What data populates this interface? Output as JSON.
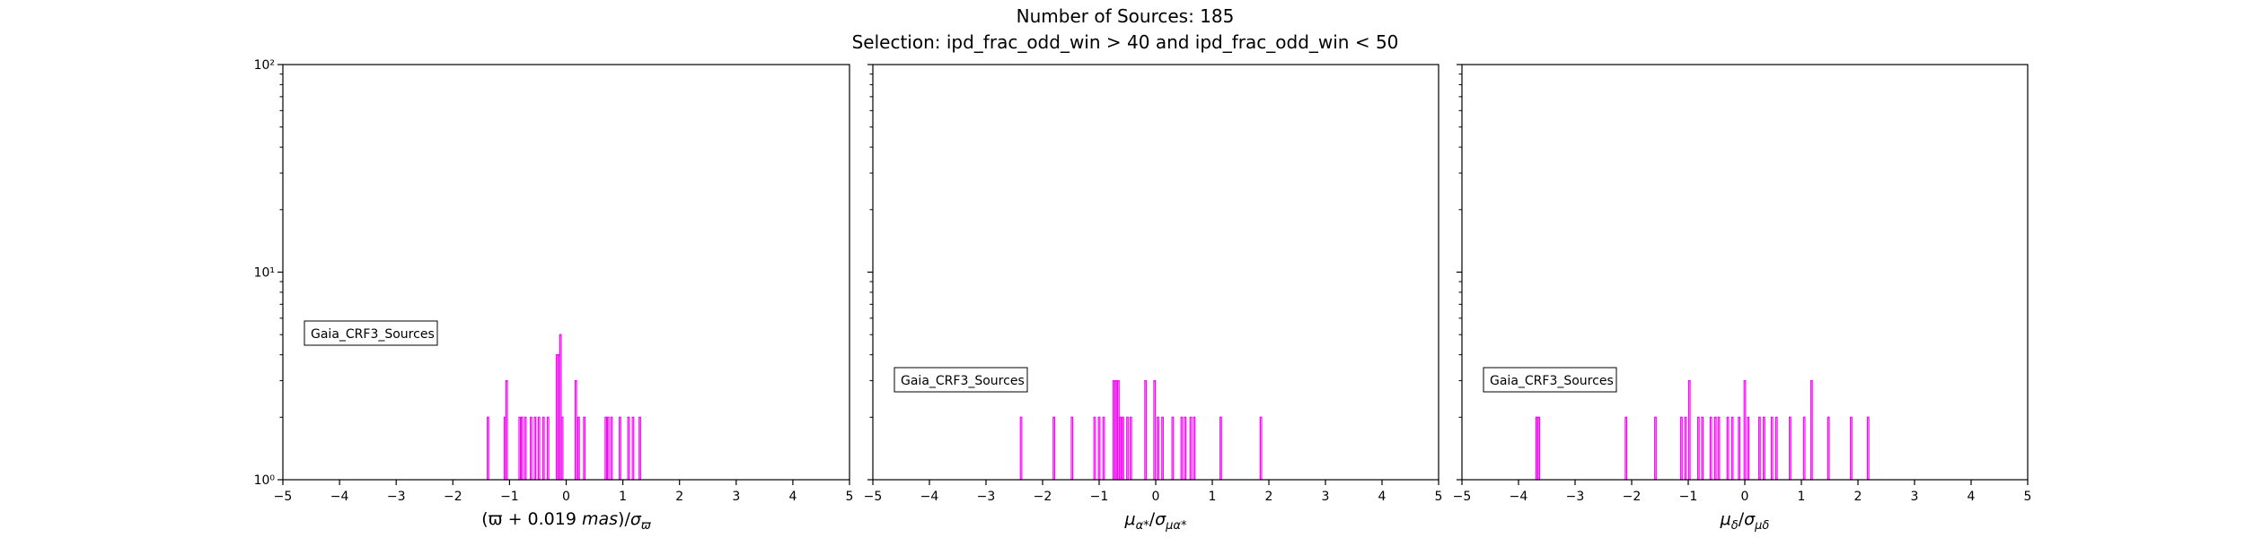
{
  "title": "Number of Sources: 185",
  "subtitle": "Selection: ipd_frac_odd_win > 40 and ipd_frac_odd_win < 50",
  "colors": {
    "histogram": "#ff00ff",
    "axes": "#000000"
  },
  "chart_data": [
    {
      "type": "histogram",
      "legend": "Gaia_CRF3_Sources",
      "legend_position": "middle-left",
      "xlabel": "(ϖ + 0.019 mas)/σϖ",
      "xlim": [
        -5,
        5
      ],
      "ylim": [
        1,
        100
      ],
      "yscale": "log",
      "xticks": [
        "−5",
        "−4",
        "−3",
        "−2",
        "−1",
        "0",
        "1",
        "2",
        "3",
        "4",
        "5"
      ],
      "yticks": [
        "10⁰",
        "10¹",
        "10²"
      ],
      "bins": [
        {
          "x": -1.38,
          "count": 2
        },
        {
          "x": -1.08,
          "count": 2
        },
        {
          "x": -1.05,
          "count": 3
        },
        {
          "x": -0.82,
          "count": 2
        },
        {
          "x": -0.78,
          "count": 2
        },
        {
          "x": -0.72,
          "count": 2
        },
        {
          "x": -0.62,
          "count": 2
        },
        {
          "x": -0.55,
          "count": 2
        },
        {
          "x": -0.48,
          "count": 2
        },
        {
          "x": -0.4,
          "count": 2
        },
        {
          "x": -0.32,
          "count": 2
        },
        {
          "x": -0.16,
          "count": 4
        },
        {
          "x": -0.13,
          "count": 4
        },
        {
          "x": -0.1,
          "count": 5
        },
        {
          "x": -0.07,
          "count": 2
        },
        {
          "x": 0.17,
          "count": 3
        },
        {
          "x": 0.22,
          "count": 2
        },
        {
          "x": 0.32,
          "count": 2
        },
        {
          "x": 0.7,
          "count": 2
        },
        {
          "x": 0.74,
          "count": 2
        },
        {
          "x": 0.8,
          "count": 2
        },
        {
          "x": 0.95,
          "count": 2
        },
        {
          "x": 1.1,
          "count": 2
        },
        {
          "x": 1.18,
          "count": 2
        },
        {
          "x": 1.3,
          "count": 2
        }
      ]
    },
    {
      "type": "histogram",
      "legend": "Gaia_CRF3_Sources",
      "legend_position": "middle-left",
      "xlabel": "μα*/σμα*",
      "xlim": [
        -5,
        5
      ],
      "ylim": [
        1,
        100
      ],
      "yscale": "log",
      "xticks": [
        "−5",
        "−4",
        "−3",
        "−2",
        "−1",
        "0",
        "1",
        "2",
        "3",
        "4",
        "5"
      ],
      "yticks": [],
      "bins": [
        {
          "x": -2.38,
          "count": 2
        },
        {
          "x": -1.8,
          "count": 2
        },
        {
          "x": -1.48,
          "count": 2
        },
        {
          "x": -1.08,
          "count": 2
        },
        {
          "x": -1.0,
          "count": 2
        },
        {
          "x": -0.92,
          "count": 2
        },
        {
          "x": -0.74,
          "count": 3
        },
        {
          "x": -0.7,
          "count": 3
        },
        {
          "x": -0.66,
          "count": 3
        },
        {
          "x": -0.62,
          "count": 2
        },
        {
          "x": -0.58,
          "count": 2
        },
        {
          "x": -0.5,
          "count": 2
        },
        {
          "x": -0.44,
          "count": 2
        },
        {
          "x": -0.18,
          "count": 3
        },
        {
          "x": -0.02,
          "count": 3
        },
        {
          "x": 0.04,
          "count": 2
        },
        {
          "x": 0.12,
          "count": 2
        },
        {
          "x": 0.3,
          "count": 2
        },
        {
          "x": 0.46,
          "count": 2
        },
        {
          "x": 0.52,
          "count": 2
        },
        {
          "x": 0.62,
          "count": 2
        },
        {
          "x": 0.68,
          "count": 2
        },
        {
          "x": 1.15,
          "count": 2
        },
        {
          "x": 1.86,
          "count": 2
        }
      ]
    },
    {
      "type": "histogram",
      "legend": "Gaia_CRF3_Sources",
      "legend_position": "middle-left",
      "xlabel": "μδ/σμδ",
      "xlim": [
        -5,
        5
      ],
      "ylim": [
        1,
        100
      ],
      "yscale": "log",
      "xticks": [
        "−5",
        "−4",
        "−3",
        "−2",
        "−1",
        "0",
        "1",
        "2",
        "3",
        "4",
        "5"
      ],
      "yticks": [],
      "bins": [
        {
          "x": -3.68,
          "count": 2
        },
        {
          "x": -3.64,
          "count": 2
        },
        {
          "x": -2.1,
          "count": 2
        },
        {
          "x": -1.58,
          "count": 2
        },
        {
          "x": -1.12,
          "count": 2
        },
        {
          "x": -1.05,
          "count": 2
        },
        {
          "x": -0.98,
          "count": 3
        },
        {
          "x": -0.82,
          "count": 2
        },
        {
          "x": -0.75,
          "count": 2
        },
        {
          "x": -0.6,
          "count": 2
        },
        {
          "x": -0.52,
          "count": 2
        },
        {
          "x": -0.46,
          "count": 2
        },
        {
          "x": -0.3,
          "count": 2
        },
        {
          "x": -0.22,
          "count": 2
        },
        {
          "x": -0.1,
          "count": 2
        },
        {
          "x": 0.0,
          "count": 3
        },
        {
          "x": 0.06,
          "count": 2
        },
        {
          "x": 0.26,
          "count": 2
        },
        {
          "x": 0.34,
          "count": 2
        },
        {
          "x": 0.48,
          "count": 2
        },
        {
          "x": 0.56,
          "count": 2
        },
        {
          "x": 0.8,
          "count": 2
        },
        {
          "x": 1.05,
          "count": 2
        },
        {
          "x": 1.18,
          "count": 3
        },
        {
          "x": 1.48,
          "count": 2
        },
        {
          "x": 1.88,
          "count": 2
        },
        {
          "x": 2.18,
          "count": 2
        }
      ]
    }
  ]
}
